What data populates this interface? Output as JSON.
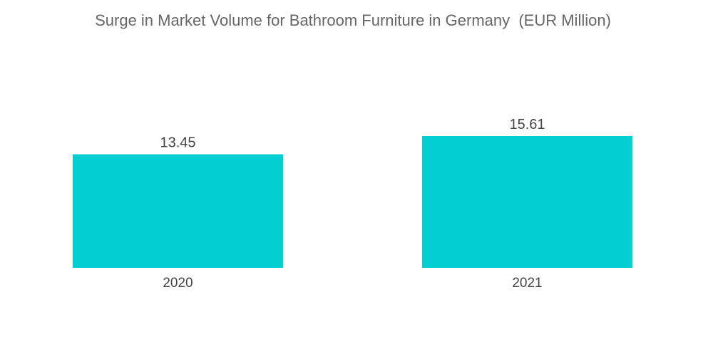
{
  "chart_data": {
    "type": "bar",
    "title": "Surge in Market Volume for Bathroom Furniture in Germany  (EUR Million)",
    "categories": [
      "2020",
      "2021"
    ],
    "values": [
      13.45,
      15.61
    ],
    "value_labels": [
      "13.45",
      "15.61"
    ],
    "xlabel": "",
    "ylabel": "",
    "ylim": [
      0,
      15.61
    ],
    "grid": false,
    "legend": "none",
    "bar_color": "#00CED1"
  }
}
